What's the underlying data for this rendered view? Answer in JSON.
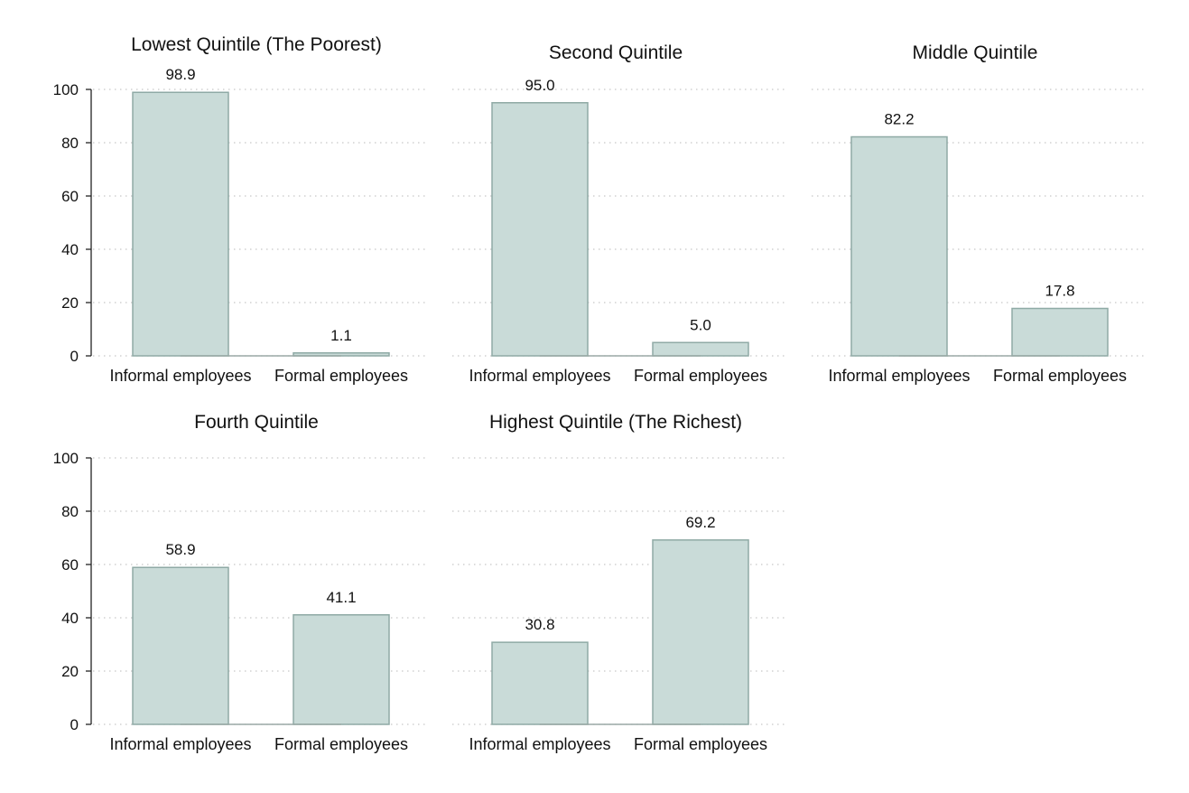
{
  "chart_data": [
    {
      "type": "bar",
      "title": "Lowest Quintile (The Poorest)",
      "categories": [
        "Informal employees",
        "Formal employees"
      ],
      "values": [
        98.9,
        1.1
      ],
      "data_labels": [
        "98.9",
        "1.1"
      ],
      "ylim": [
        0,
        100
      ],
      "yticks": [
        "0",
        "20",
        "40",
        "60",
        "80",
        "100"
      ],
      "show_y_axis": true
    },
    {
      "type": "bar",
      "title": "Second Quintile",
      "categories": [
        "Informal employees",
        "Formal employees"
      ],
      "values": [
        95.0,
        5.0
      ],
      "data_labels": [
        "95.0",
        "5.0"
      ],
      "ylim": [
        0,
        100
      ],
      "show_y_axis": false
    },
    {
      "type": "bar",
      "title": "Middle Quintile",
      "categories": [
        "Informal employees",
        "Formal employees"
      ],
      "values": [
        82.2,
        17.8
      ],
      "data_labels": [
        "82.2",
        "17.8"
      ],
      "ylim": [
        0,
        100
      ],
      "show_y_axis": false
    },
    {
      "type": "bar",
      "title": "Fourth Quintile",
      "categories": [
        "Informal employees",
        "Formal employees"
      ],
      "values": [
        58.9,
        41.1
      ],
      "data_labels": [
        "58.9",
        "41.1"
      ],
      "ylim": [
        0,
        100
      ],
      "yticks": [
        "0",
        "20",
        "40",
        "60",
        "80",
        "100"
      ],
      "show_y_axis": true
    },
    {
      "type": "bar",
      "title": "Highest Quintile (The Richest)",
      "categories": [
        "Informal employees",
        "Formal employees"
      ],
      "values": [
        30.8,
        69.2
      ],
      "data_labels": [
        "30.8",
        "69.2"
      ],
      "ylim": [
        0,
        100
      ],
      "show_y_axis": false
    }
  ],
  "style": {
    "bar_fill": "#c9dbd8",
    "bar_stroke": "#8faaa5",
    "grid": "dotted",
    "background": "#ffffff"
  }
}
